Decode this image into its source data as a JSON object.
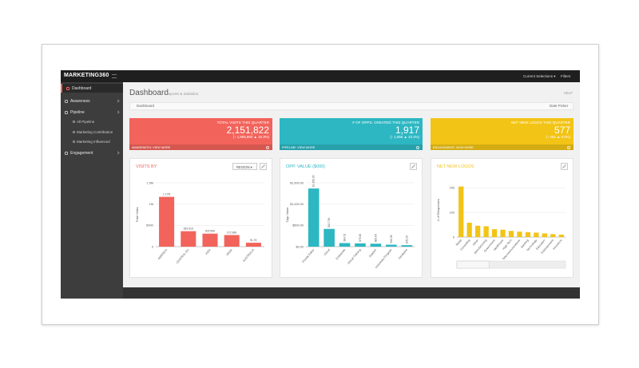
{
  "app": {
    "logo": "MARKETING360",
    "current_selections": "Current Selections ▾",
    "filters": "Filters"
  },
  "sidebar": {
    "items": [
      "Dashboard",
      "Awareness",
      "Pipeline",
      "Engagement"
    ],
    "pipeline_items": [
      "All Pipeline",
      "Marketing Contribution",
      "Marketing Influenced"
    ]
  },
  "page": {
    "title": "Dashboard",
    "subtitle": "reports & statistics",
    "help": "HELP",
    "breadcrumb": "Dashboard",
    "date_picker": "Date Picker"
  },
  "kpis": [
    {
      "title": "TOTAL VISITS THIS QUARTER",
      "value": "2,151,822",
      "change": "(↑ 1,885,893 ▲ 15.3%)",
      "link": "AWARENESS: VIEW MORE",
      "color": "#f2635b"
    },
    {
      "title": "# OF OPPS. CREATED THIS QUARTER",
      "value": "1,917",
      "change": "(↑ 1,556 ▲ 23.2%)",
      "link": "PIPELINE: VIEW MORE",
      "color": "#2db7c2"
    },
    {
      "title": "NET NEW LOGOS THIS QUARTER",
      "value": "577",
      "change": "(↑ 453 ▲ 8.0%)",
      "link": "ENGAGEMENT: VIEW MORE",
      "color": "#f2c416"
    }
  ],
  "chart_data": [
    {
      "type": "bar",
      "title": "VISITS BY",
      "dropdown": "REGION ▾",
      "ylabel": "Total Visits",
      "categories": [
        "AMERICA",
        "CENTRAL EU",
        "ASIA",
        "INDIA",
        "AUSTRALIA"
      ],
      "values": [
        1170000,
        363510,
        305550,
        272960,
        91700
      ],
      "value_labels": [
        "1.17M",
        "363.51K",
        "305.55K",
        "272.96K",
        "91.7K"
      ],
      "color": "#f2635b",
      "ylim": [
        0,
        1500000
      ],
      "yticks": [
        0,
        {
          "value": 500000,
          "label": "500K"
        },
        {
          "value": 1000000,
          "label": "1M"
        },
        {
          "value": 1500000,
          "label": "1.5M"
        }
      ],
      "grid": true
    },
    {
      "type": "bar",
      "title": "OPP. VALUE ($000)",
      "ylabel": "Opp Value",
      "categories": [
        "Private Editor",
        "Cloud",
        "Enterprise",
        "Virtual Training",
        "Support",
        "University Program",
        "Hardware"
      ],
      "values": [
        1366.2,
        417.59,
        84.51,
        76.98,
        69.69,
        46.08,
        35.2
      ],
      "value_labels": [
        "$1,366.20",
        "$417.59",
        "$84.51",
        "$76.98",
        "$69.69",
        "$46.08",
        "$35.20"
      ],
      "color": "#2db7c2",
      "ylim": [
        0,
        1500
      ],
      "yticks": [
        {
          "value": 0,
          "label": "$0.00"
        },
        {
          "value": 500,
          "label": "$500.00"
        },
        {
          "value": 1000,
          "label": "$1,000.00"
        },
        {
          "value": 1500,
          "label": "$1,500.00"
        }
      ],
      "grid": true
    },
    {
      "type": "bar",
      "title": "NET NEW LOGOS",
      "ylabel": "# of Responses",
      "categories": [
        "Retail",
        "Consulting",
        "Other",
        "Manufacturing",
        "Government",
        "Healthcare",
        "High Tech",
        "Telecommunications",
        "Banking",
        "Technology",
        "Education",
        "Entertainment",
        "Insurance"
      ],
      "values": [
        205,
        58,
        46,
        44,
        32,
        30,
        25,
        22,
        20,
        18,
        15,
        12,
        10
      ],
      "color": "#f2c416",
      "ylim": [
        0,
        220
      ],
      "yticks": [
        0,
        100,
        200
      ],
      "grid": true
    }
  ]
}
